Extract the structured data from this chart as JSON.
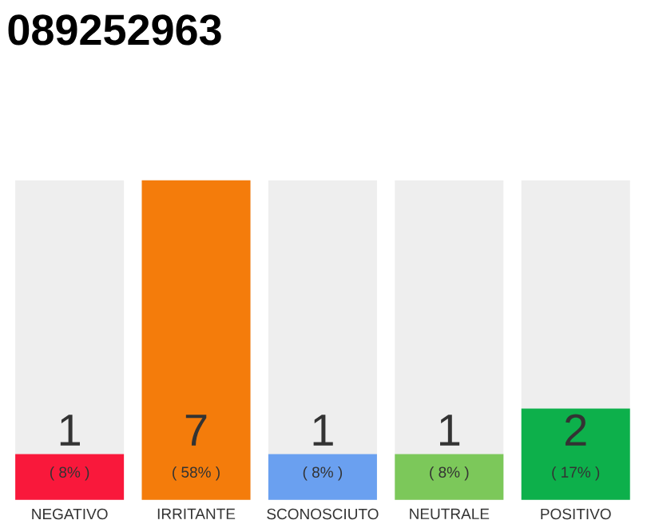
{
  "chart_data": {
    "type": "bar",
    "title": "089252963",
    "categories": [
      "NEGATIVO",
      "IRRITANTE",
      "SCONOSCIUTO",
      "NEUTRALE",
      "POSITIVO"
    ],
    "values": [
      1,
      7,
      1,
      1,
      2
    ],
    "colors": [
      "#f9183b",
      "#f47c0b",
      "#6aa0f0",
      "#7cc85a",
      "#0db04b"
    ],
    "data_labels": true,
    "annotations": [
      "( 8% )",
      "( 58% )",
      "( 8% )",
      "( 8% )",
      "( 17% )"
    ]
  }
}
